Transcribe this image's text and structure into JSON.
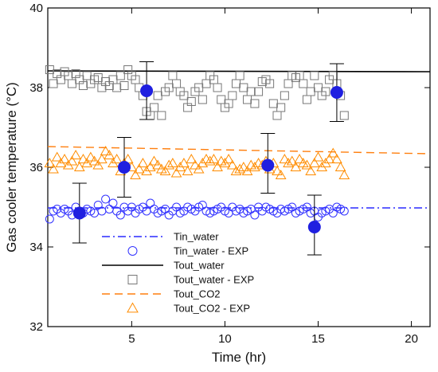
{
  "chart_data": {
    "type": "scatter",
    "xlabel": "Time (hr)",
    "ylabel": "Gas cooler temperature (°C)",
    "xlim": [
      0.5,
      21
    ],
    "ylim": [
      32,
      40
    ],
    "x_ticks": [
      5,
      10,
      15,
      20
    ],
    "y_ticks": [
      32,
      34,
      36,
      38,
      40
    ],
    "legend_position": "lower-left",
    "series": [
      {
        "name": "Tin_water",
        "kind": "line",
        "style": "dashdot",
        "color": "#2a2aff",
        "x": [
          0.5,
          21
        ],
        "y": [
          34.98,
          34.98
        ]
      },
      {
        "name": "Tin_water - EXP",
        "kind": "marker",
        "marker": "circle",
        "color": "#3333ff",
        "x": [
          0.6,
          0.8,
          1.0,
          1.2,
          1.4,
          1.6,
          1.8,
          2.0,
          2.2,
          2.4,
          2.6,
          2.8,
          3.0,
          3.2,
          3.4,
          3.6,
          3.8,
          4.0,
          4.2,
          4.4,
          4.6,
          4.8,
          5.0,
          5.2,
          5.4,
          5.6,
          5.8,
          6.0,
          6.2,
          6.4,
          6.6,
          6.8,
          7.0,
          7.2,
          7.4,
          7.6,
          7.8,
          8.0,
          8.2,
          8.4,
          8.6,
          8.8,
          9.0,
          9.2,
          9.4,
          9.6,
          9.8,
          10.0,
          10.2,
          10.4,
          10.6,
          10.8,
          11.0,
          11.2,
          11.4,
          11.6,
          11.8,
          12.0,
          12.2,
          12.4,
          12.6,
          12.8,
          13.0,
          13.2,
          13.4,
          13.6,
          13.8,
          14.0,
          14.2,
          14.4,
          14.6,
          14.8,
          15.0,
          15.2,
          15.4,
          15.6,
          15.8,
          16.0,
          16.2,
          16.4
        ],
        "y": [
          34.7,
          34.9,
          34.95,
          34.85,
          34.95,
          34.9,
          34.8,
          35.0,
          34.9,
          34.85,
          34.95,
          34.9,
          34.85,
          35.05,
          34.9,
          35.2,
          34.95,
          35.1,
          34.9,
          34.8,
          35.0,
          34.9,
          35.0,
          34.85,
          34.95,
          35.0,
          34.9,
          35.1,
          34.95,
          34.85,
          34.9,
          34.95,
          34.8,
          34.9,
          35.0,
          34.85,
          34.9,
          35.0,
          34.95,
          34.9,
          35.0,
          35.05,
          34.9,
          34.85,
          34.9,
          34.95,
          35.0,
          34.9,
          34.85,
          35.0,
          34.9,
          34.95,
          34.85,
          34.9,
          34.95,
          34.8,
          35.0,
          34.9,
          35.0,
          34.95,
          34.9,
          34.85,
          34.95,
          34.9,
          34.95,
          35.0,
          34.85,
          34.9,
          34.95,
          35.0,
          34.85,
          34.9,
          34.75,
          34.85,
          34.9,
          34.95,
          34.85,
          35.0,
          34.95,
          34.9
        ]
      },
      {
        "name": "Tout_water",
        "kind": "line",
        "style": "solid",
        "color": "#000000",
        "x": [
          0.5,
          21
        ],
        "y": [
          38.42,
          38.4
        ]
      },
      {
        "name": "Tout_water - EXP",
        "kind": "marker",
        "marker": "square",
        "color": "#777777",
        "x": [
          0.6,
          0.8,
          1.0,
          1.2,
          1.4,
          1.6,
          1.8,
          2.0,
          2.2,
          2.4,
          2.6,
          2.8,
          3.0,
          3.2,
          3.4,
          3.6,
          3.8,
          4.0,
          4.2,
          4.4,
          4.6,
          4.8,
          5.0,
          5.2,
          5.4,
          5.6,
          5.8,
          6.0,
          6.2,
          6.4,
          6.6,
          6.8,
          7.0,
          7.2,
          7.4,
          7.6,
          7.8,
          8.0,
          8.2,
          8.4,
          8.6,
          8.8,
          9.0,
          9.2,
          9.4,
          9.6,
          9.8,
          10.0,
          10.2,
          10.4,
          10.6,
          10.8,
          11.0,
          11.2,
          11.4,
          11.6,
          11.8,
          12.0,
          12.2,
          12.4,
          12.6,
          12.8,
          13.0,
          13.2,
          13.4,
          13.6,
          13.8,
          14.0,
          14.2,
          14.4,
          14.6,
          14.8,
          15.0,
          15.2,
          15.4,
          15.6,
          15.8,
          16.0,
          16.2,
          16.4
        ],
        "y": [
          38.45,
          38.1,
          38.35,
          38.2,
          38.4,
          38.3,
          38.1,
          38.35,
          38.2,
          38.05,
          38.3,
          38.1,
          38.2,
          38.25,
          38.0,
          38.15,
          38.05,
          38.2,
          38.0,
          38.3,
          38.05,
          38.45,
          38.3,
          38.2,
          38.0,
          37.8,
          37.4,
          37.3,
          37.5,
          37.8,
          37.3,
          37.9,
          38.0,
          38.3,
          38.1,
          37.9,
          37.8,
          37.5,
          37.65,
          37.9,
          38.0,
          37.7,
          38.1,
          38.3,
          38.2,
          38.0,
          37.7,
          37.5,
          37.6,
          37.8,
          38.1,
          38.3,
          38.0,
          37.7,
          37.9,
          37.6,
          37.9,
          38.15,
          38.2,
          38.1,
          37.6,
          37.3,
          37.5,
          37.8,
          38.1,
          38.3,
          38.25,
          38.3,
          38.1,
          37.7,
          37.9,
          38.3,
          38.0,
          37.8,
          37.9,
          38.2,
          38.3,
          38.1,
          37.8,
          37.3
        ]
      },
      {
        "name": "Tout_CO2",
        "kind": "line",
        "style": "dashed",
        "color": "#ff7f0e",
        "x": [
          0.5,
          21
        ],
        "y": [
          36.52,
          36.34
        ]
      },
      {
        "name": "Tout_CO2 - EXP",
        "kind": "marker",
        "marker": "triangle",
        "color": "#ff8c00",
        "x": [
          0.6,
          0.8,
          1.0,
          1.2,
          1.4,
          1.6,
          1.8,
          2.0,
          2.2,
          2.4,
          2.6,
          2.8,
          3.0,
          3.2,
          3.4,
          3.6,
          3.8,
          4.0,
          4.2,
          4.4,
          4.6,
          4.8,
          5.0,
          5.2,
          5.4,
          5.6,
          5.8,
          6.0,
          6.2,
          6.4,
          6.6,
          6.8,
          7.0,
          7.2,
          7.4,
          7.6,
          7.8,
          8.0,
          8.2,
          8.4,
          8.6,
          8.8,
          9.0,
          9.2,
          9.4,
          9.6,
          9.8,
          10.0,
          10.2,
          10.4,
          10.6,
          10.8,
          11.0,
          11.2,
          11.4,
          11.6,
          11.8,
          12.0,
          12.2,
          12.4,
          12.6,
          12.8,
          13.0,
          13.2,
          13.4,
          13.6,
          13.8,
          14.0,
          14.2,
          14.4,
          14.6,
          14.8,
          15.0,
          15.2,
          15.4,
          15.6,
          15.8,
          16.0,
          16.2,
          16.4
        ],
        "y": [
          36.1,
          35.95,
          36.25,
          36.1,
          36.2,
          36.05,
          36.15,
          36.3,
          36.0,
          36.2,
          36.1,
          36.25,
          36.15,
          36.05,
          36.2,
          36.4,
          36.3,
          36.1,
          36.2,
          35.9,
          36.1,
          36.2,
          36.0,
          35.8,
          35.95,
          36.1,
          35.9,
          36.0,
          36.15,
          36.05,
          35.95,
          35.9,
          36.05,
          36.1,
          35.85,
          36.0,
          36.1,
          35.9,
          36.2,
          36.05,
          35.95,
          36.1,
          36.2,
          36.15,
          36.2,
          36.0,
          36.15,
          36.1,
          36.2,
          36.05,
          35.9,
          35.95,
          36.0,
          35.9,
          36.05,
          36.0,
          36.1,
          36.05,
          36.15,
          35.95,
          36.1,
          35.9,
          35.8,
          36.2,
          36.1,
          36.15,
          36.0,
          36.2,
          36.1,
          36.05,
          35.9,
          36.1,
          36.25,
          36.0,
          36.1,
          36.2,
          36.35,
          36.2,
          36.0,
          35.8
        ]
      },
      {
        "name": "",
        "kind": "mean_with_error",
        "marker": "filled-circle",
        "color": "#1f1fe0",
        "points": [
          {
            "x": 2.2,
            "y": 34.85,
            "err_low": 34.1,
            "err_high": 35.6
          },
          {
            "x": 4.6,
            "y": 36.0,
            "err_low": 35.25,
            "err_high": 36.75
          },
          {
            "x": 5.8,
            "y": 37.92,
            "err_low": 37.2,
            "err_high": 38.65
          },
          {
            "x": 12.3,
            "y": 36.05,
            "err_low": 35.35,
            "err_high": 36.85
          },
          {
            "x": 14.8,
            "y": 34.5,
            "err_low": 33.8,
            "err_high": 35.3
          },
          {
            "x": 16.0,
            "y": 37.88,
            "err_low": 37.15,
            "err_high": 38.6
          }
        ]
      }
    ]
  }
}
